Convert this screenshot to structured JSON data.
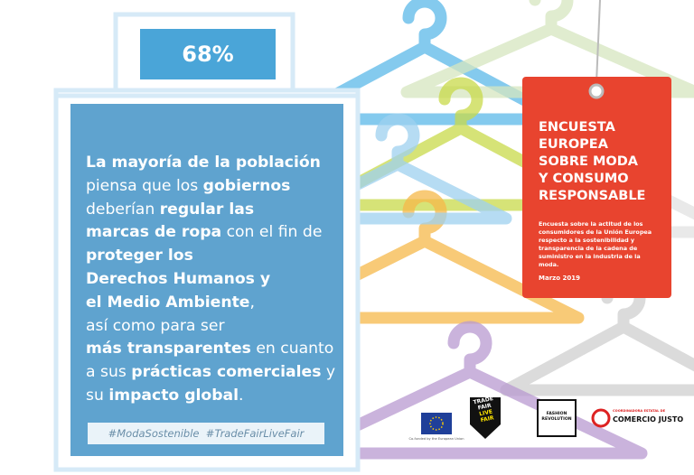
{
  "stat": {
    "value": "68%"
  },
  "panel": {
    "lines": [
      [
        "La mayoría de la población"
      ],
      [
        "piensa que los ",
        "gobiernos"
      ],
      [
        "deberían ",
        "regular las"
      ],
      [
        "marcas de ropa",
        " con el fin de"
      ],
      [
        "proteger los"
      ],
      [
        "Derechos Humanos y"
      ],
      [
        "el Medio Ambiente",
        ","
      ],
      [
        "así como para ser"
      ],
      [
        "más transparentes",
        " en cuanto"
      ],
      [
        "a sus ",
        "prácticas comerciales",
        " y"
      ],
      [
        "su ",
        "impacto global",
        "."
      ]
    ],
    "hashtags": "#ModaSostenible  #TradeFairLiveFair"
  },
  "tag": {
    "title": [
      "ENCUESTA",
      "EUROPEA",
      "SOBRE MODA",
      "Y CONSUMO",
      "RESPONSABLE"
    ],
    "description": "Encuesta sobre la actitud de los consumidores de la Unión Europea respecto a la sostenibilidad y transparencia de la cadena de suministro en la industria de la moda.",
    "date": "Marzo 2019"
  },
  "logos": {
    "eu": "Co-funded by the European Union",
    "tradefair": [
      "TRADE",
      "FAIR",
      "LIVE",
      "FAIR"
    ],
    "fashion_revolution": [
      "FASHION",
      "REVOLUTION"
    ],
    "comercio_justo": {
      "top": "COORDINADORA ESTATAL DE",
      "main": "COMERCIO JUSTO"
    }
  }
}
